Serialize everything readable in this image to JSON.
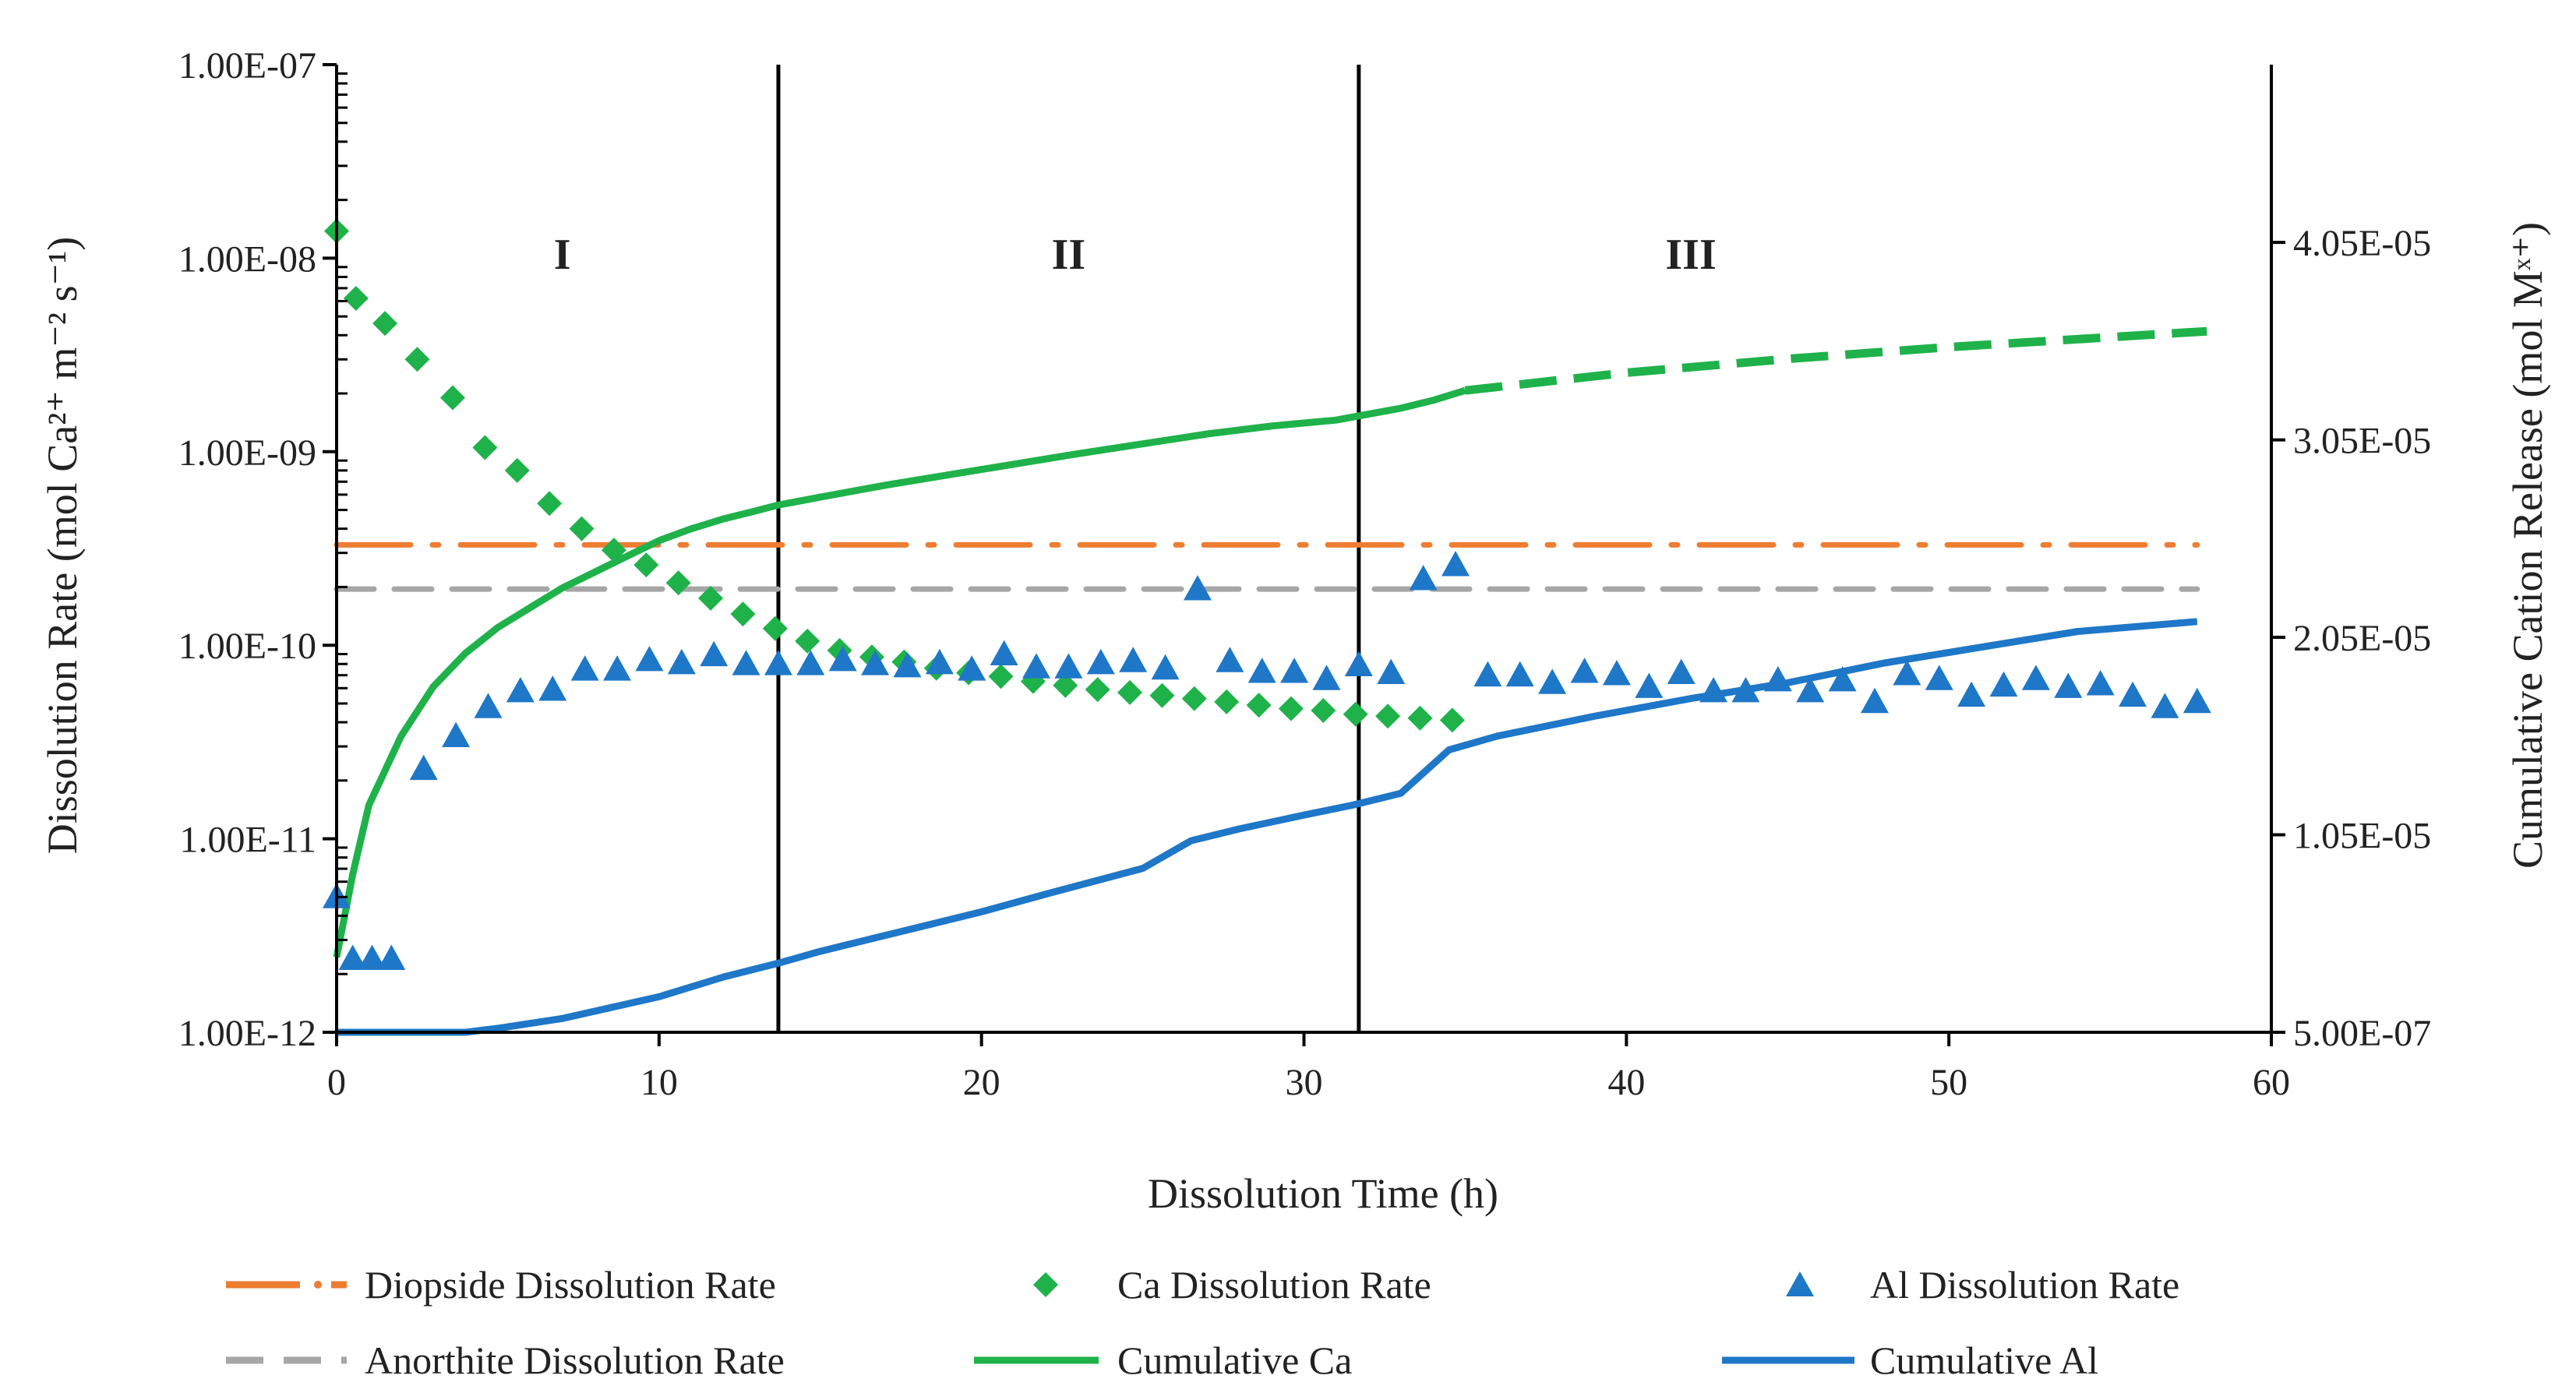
{
  "chart_data": {
    "type": "scatter",
    "xlabel": "Dissolution Time (h)",
    "ylabel_left": "Dissolution Rate (mol Ca²⁺ m⁻² s⁻¹)",
    "ylabel_right": "Cumulative Cation Release (mol Mˣ⁺)",
    "xlim": [
      0,
      60
    ],
    "x_ticks": [
      0,
      10,
      20,
      30,
      40,
      50,
      60
    ],
    "x_tick_labels": [
      "0",
      "10",
      "20",
      "30",
      "40",
      "50",
      "60"
    ],
    "y_left_scale": "log",
    "y_left_lim": [
      1e-12,
      1e-07
    ],
    "y_left_ticks": [
      1e-12,
      1e-11,
      1e-10,
      1e-09,
      1e-08,
      1e-07
    ],
    "y_left_tick_labels": [
      "1.00E-12",
      "1.00E-11",
      "1.00E-10",
      "1.00E-09",
      "1.00E-08",
      "1.00E-07"
    ],
    "y_right_lim": [
      5e-07,
      4.95e-05
    ],
    "y_right_ticks": [
      5e-07,
      1.05e-05,
      2.05e-05,
      3.05e-05,
      4.05e-05
    ],
    "y_right_tick_labels": [
      "5.00E-07",
      "1.05E-05",
      "2.05E-05",
      "3.05E-05",
      "4.05E-05"
    ],
    "vertical_lines": [
      13.7,
      31.7
    ],
    "regions": [
      {
        "label": "I",
        "x": 7
      },
      {
        "label": "II",
        "x": 22.7
      },
      {
        "label": "III",
        "x": 42
      }
    ],
    "series": [
      {
        "name": "Diopside Dissolution Rate",
        "kind": "hline",
        "axis": "left",
        "y": 3.3e-10,
        "color": "#ed7d31",
        "style": "dash-dot"
      },
      {
        "name": "Ca Dissolution Rate",
        "kind": "scatter",
        "marker": "diamond",
        "axis": "left",
        "color": "#1fb24a",
        "points": [
          [
            0,
            1.38e-08
          ],
          [
            0.6,
            6.2e-09
          ],
          [
            1.5,
            4.6e-09
          ],
          [
            2.5,
            3e-09
          ],
          [
            3.6,
            1.9e-09
          ],
          [
            4.6,
            1.05e-09
          ],
          [
            5.6,
            8e-10
          ],
          [
            6.6,
            5.4e-10
          ],
          [
            7.6,
            4e-10
          ],
          [
            8.6,
            3.1e-10
          ],
          [
            9.6,
            2.6e-10
          ],
          [
            10.6,
            2.1e-10
          ],
          [
            11.6,
            1.75e-10
          ],
          [
            12.6,
            1.45e-10
          ],
          [
            13.6,
            1.22e-10
          ],
          [
            14.6,
            1.05e-10
          ],
          [
            15.6,
            9.4e-11
          ],
          [
            16.6,
            8.7e-11
          ],
          [
            17.6,
            8.2e-11
          ],
          [
            18.6,
            7.6e-11
          ],
          [
            19.6,
            7.2e-11
          ],
          [
            20.6,
            6.9e-11
          ],
          [
            21.6,
            6.5e-11
          ],
          [
            22.6,
            6.2e-11
          ],
          [
            23.6,
            5.9e-11
          ],
          [
            24.6,
            5.7e-11
          ],
          [
            25.6,
            5.5e-11
          ],
          [
            26.6,
            5.3e-11
          ],
          [
            27.6,
            5.1e-11
          ],
          [
            28.6,
            4.9e-11
          ],
          [
            29.6,
            4.7e-11
          ],
          [
            30.6,
            4.6e-11
          ],
          [
            31.6,
            4.4e-11
          ],
          [
            32.6,
            4.3e-11
          ],
          [
            33.6,
            4.2e-11
          ],
          [
            34.6,
            4.1e-11
          ]
        ]
      },
      {
        "name": "Al Dissolution Rate",
        "kind": "scatter",
        "marker": "triangle",
        "axis": "left",
        "color": "#1f77c8",
        "points": [
          [
            0,
            5e-12
          ],
          [
            0.5,
            2.4e-12
          ],
          [
            1.1,
            2.4e-12
          ],
          [
            1.7,
            2.4e-12
          ],
          [
            2.7,
            2.3e-11
          ],
          [
            3.7,
            3.4e-11
          ],
          [
            4.7,
            4.8e-11
          ],
          [
            5.7,
            5.8e-11
          ],
          [
            6.7,
            5.9e-11
          ],
          [
            7.7,
            7.5e-11
          ],
          [
            8.7,
            7.5e-11
          ],
          [
            9.7,
            8.4e-11
          ],
          [
            10.7,
            8.1e-11
          ],
          [
            11.7,
            8.9e-11
          ],
          [
            12.7,
            8e-11
          ],
          [
            13.7,
            8e-11
          ],
          [
            14.7,
            8e-11
          ],
          [
            15.7,
            8.4e-11
          ],
          [
            16.7,
            8e-11
          ],
          [
            17.7,
            7.8e-11
          ],
          [
            18.7,
            8.1e-11
          ],
          [
            19.7,
            7.5e-11
          ],
          [
            20.7,
            9e-11
          ],
          [
            21.7,
            7.7e-11
          ],
          [
            22.7,
            7.7e-11
          ],
          [
            23.7,
            8.1e-11
          ],
          [
            24.7,
            8.3e-11
          ],
          [
            25.7,
            7.6e-11
          ],
          [
            26.7,
            1.95e-10
          ],
          [
            27.7,
            8.3e-11
          ],
          [
            28.7,
            7.3e-11
          ],
          [
            29.7,
            7.3e-11
          ],
          [
            30.7,
            6.7e-11
          ],
          [
            31.7,
            7.9e-11
          ],
          [
            32.7,
            7.2e-11
          ],
          [
            33.7,
            2.2e-10
          ],
          [
            34.7,
            2.6e-10
          ],
          [
            35.7,
            7e-11
          ],
          [
            36.7,
            7e-11
          ],
          [
            37.7,
            6.4e-11
          ],
          [
            38.7,
            7.3e-11
          ],
          [
            39.7,
            7.1e-11
          ],
          [
            40.7,
            6.1e-11
          ],
          [
            41.7,
            7.2e-11
          ],
          [
            42.7,
            5.8e-11
          ],
          [
            43.7,
            5.8e-11
          ],
          [
            44.7,
            6.6e-11
          ],
          [
            45.7,
            5.8e-11
          ],
          [
            46.7,
            6.6e-11
          ],
          [
            47.7,
            5.1e-11
          ],
          [
            48.7,
            7.1e-11
          ],
          [
            49.7,
            6.7e-11
          ],
          [
            50.7,
            5.5e-11
          ],
          [
            51.7,
            6.2e-11
          ],
          [
            52.7,
            6.7e-11
          ],
          [
            53.7,
            6.1e-11
          ],
          [
            54.7,
            6.3e-11
          ],
          [
            55.7,
            5.5e-11
          ],
          [
            56.7,
            4.8e-11
          ],
          [
            57.7,
            5.1e-11
          ]
        ]
      },
      {
        "name": "Anorthite Dissolution Rate",
        "kind": "hline",
        "axis": "left",
        "y": 1.95e-10,
        "color": "#a6a6a6",
        "style": "dash"
      },
      {
        "name": "Cumulative Ca",
        "kind": "line",
        "axis": "right",
        "color": "#1fb24a",
        "points": [
          [
            0,
            4.3e-06
          ],
          [
            0.5,
            8.5e-06
          ],
          [
            1,
            1.2e-05
          ],
          [
            2,
            1.55e-05
          ],
          [
            3,
            1.8e-05
          ],
          [
            4,
            1.97e-05
          ],
          [
            5,
            2.1e-05
          ],
          [
            6,
            2.2e-05
          ],
          [
            7,
            2.3e-05
          ],
          [
            8,
            2.38e-05
          ],
          [
            9,
            2.46e-05
          ],
          [
            10,
            2.54e-05
          ],
          [
            11,
            2.6e-05
          ],
          [
            12,
            2.65e-05
          ],
          [
            13,
            2.69e-05
          ],
          [
            13.7,
            2.72e-05
          ],
          [
            15,
            2.76e-05
          ],
          [
            17,
            2.82e-05
          ],
          [
            20,
            2.9e-05
          ],
          [
            23,
            2.98e-05
          ],
          [
            25,
            3.03e-05
          ],
          [
            27,
            3.08e-05
          ],
          [
            29,
            3.12e-05
          ],
          [
            31,
            3.15e-05
          ],
          [
            32,
            3.18e-05
          ],
          [
            33,
            3.21e-05
          ],
          [
            34,
            3.25e-05
          ],
          [
            35,
            3.3e-05
          ]
        ],
        "projected_points": [
          [
            35,
            3.3e-05
          ],
          [
            40,
            3.39e-05
          ],
          [
            45,
            3.46e-05
          ],
          [
            50,
            3.52e-05
          ],
          [
            55,
            3.57e-05
          ],
          [
            58,
            3.6e-05
          ]
        ]
      },
      {
        "name": "Cumulative Al",
        "kind": "line",
        "axis": "right",
        "color": "#1f77c8",
        "points": [
          [
            0,
            5e-07
          ],
          [
            4,
            5e-07
          ],
          [
            5,
            7e-07
          ],
          [
            7,
            1.2e-06
          ],
          [
            10,
            2.3e-06
          ],
          [
            12,
            3.3e-06
          ],
          [
            13.7,
            4e-06
          ],
          [
            15,
            4.6e-06
          ],
          [
            17,
            5.4e-06
          ],
          [
            20,
            6.6e-06
          ],
          [
            22,
            7.5e-06
          ],
          [
            25,
            8.8e-06
          ],
          [
            26.5,
            1.02e-05
          ],
          [
            28,
            1.08e-05
          ],
          [
            30,
            1.15e-05
          ],
          [
            31.5,
            1.2e-05
          ],
          [
            33,
            1.26e-05
          ],
          [
            34.5,
            1.48e-05
          ],
          [
            36,
            1.55e-05
          ],
          [
            39,
            1.65e-05
          ],
          [
            42,
            1.74e-05
          ],
          [
            45,
            1.82e-05
          ],
          [
            48,
            1.92e-05
          ],
          [
            51,
            2e-05
          ],
          [
            54,
            2.08e-05
          ],
          [
            57.7,
            2.13e-05
          ]
        ]
      }
    ],
    "legend": [
      {
        "key": "diopside",
        "label": "Diopside Dissolution Rate"
      },
      {
        "key": "ca_rate",
        "label": "Ca Dissolution Rate"
      },
      {
        "key": "al_rate",
        "label": "Al Dissolution Rate"
      },
      {
        "key": "anorthite",
        "label": "Anorthite Dissolution Rate"
      },
      {
        "key": "cum_ca",
        "label": "Cumulative Ca"
      },
      {
        "key": "cum_al",
        "label": "Cumulative Al"
      }
    ]
  }
}
